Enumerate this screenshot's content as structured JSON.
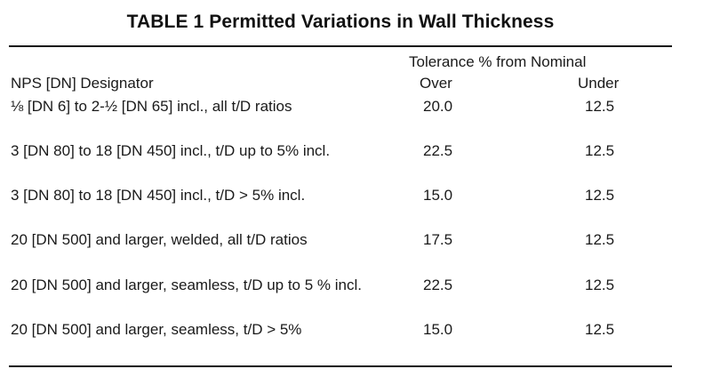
{
  "table": {
    "title": "TABLE 1 Permitted Variations in Wall Thickness",
    "header": {
      "tolerance": "Tolerance % from Nominal",
      "designator": "NPS [DN] Designator",
      "over": "Over",
      "under": "Under"
    },
    "rows": [
      {
        "designator": "⅛ [DN 6] to 2-½ [DN 65] incl., all t/D ratios",
        "over": "20.0",
        "under": "12.5"
      },
      {
        "designator": "3 [DN 80] to 18 [DN 450] incl., t/D up to 5% incl.",
        "over": "22.5",
        "under": "12.5"
      },
      {
        "designator": "3 [DN 80] to 18 [DN 450] incl., t/D > 5% incl.",
        "over": "15.0",
        "under": "12.5"
      },
      {
        "designator": "20 [DN 500] and larger, welded, all t/D ratios",
        "over": "17.5",
        "under": "12.5"
      },
      {
        "designator": "20 [DN 500] and larger, seamless, t/D up to 5 % incl.",
        "over": "22.5",
        "under": "12.5"
      },
      {
        "designator": "20 [DN 500] and larger, seamless, t/D > 5%",
        "over": "15.0",
        "under": "12.5"
      }
    ]
  }
}
